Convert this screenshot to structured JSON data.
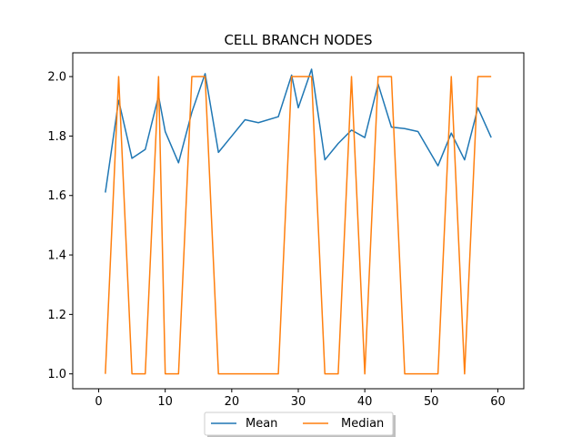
{
  "chart_data": {
    "type": "line",
    "title": "CELL BRANCH NODES",
    "xlabel": "",
    "ylabel": "",
    "xlim": [
      -3.9,
      63.9
    ],
    "ylim": [
      0.95,
      2.08
    ],
    "xticks": [
      0,
      10,
      20,
      30,
      40,
      50,
      60
    ],
    "yticks": [
      1.0,
      1.2,
      1.4,
      1.6,
      1.8,
      2.0
    ],
    "ytick_labels": [
      "1.0",
      "1.2",
      "1.4",
      "1.6",
      "1.8",
      "2.0"
    ],
    "grid": false,
    "legend_placement": "bottom-center",
    "series": [
      {
        "name": "Mean",
        "color": "#1f77b4",
        "x": [
          1,
          3,
          5,
          7,
          9,
          10,
          12,
          14,
          16,
          18,
          20,
          22,
          24,
          27,
          29,
          30,
          32,
          34,
          36,
          38,
          40,
          42,
          44,
          46,
          48,
          51,
          53,
          55,
          57,
          59
        ],
        "y": [
          1.61,
          1.92,
          1.725,
          1.755,
          1.935,
          1.815,
          1.71,
          1.88,
          2.01,
          1.745,
          1.8,
          1.855,
          1.845,
          1.865,
          2.005,
          1.895,
          2.025,
          1.72,
          1.775,
          1.82,
          1.795,
          1.975,
          1.83,
          1.825,
          1.815,
          1.7,
          1.81,
          1.72,
          1.895,
          1.795
        ]
      },
      {
        "name": "Median",
        "color": "#ff7f0e",
        "x": [
          1,
          3,
          5,
          7,
          9,
          10,
          12,
          14,
          16,
          18,
          20,
          22,
          24,
          27,
          29,
          30,
          32,
          34,
          36,
          38,
          40,
          42,
          44,
          46,
          48,
          51,
          53,
          55,
          57,
          59
        ],
        "y": [
          1.0,
          2.0,
          1.0,
          1.0,
          2.0,
          1.0,
          1.0,
          2.0,
          2.0,
          1.0,
          1.0,
          1.0,
          1.0,
          1.0,
          2.0,
          2.0,
          2.0,
          1.0,
          1.0,
          2.0,
          1.0,
          2.0,
          2.0,
          1.0,
          1.0,
          1.0,
          2.0,
          1.0,
          2.0,
          2.0
        ]
      }
    ]
  }
}
